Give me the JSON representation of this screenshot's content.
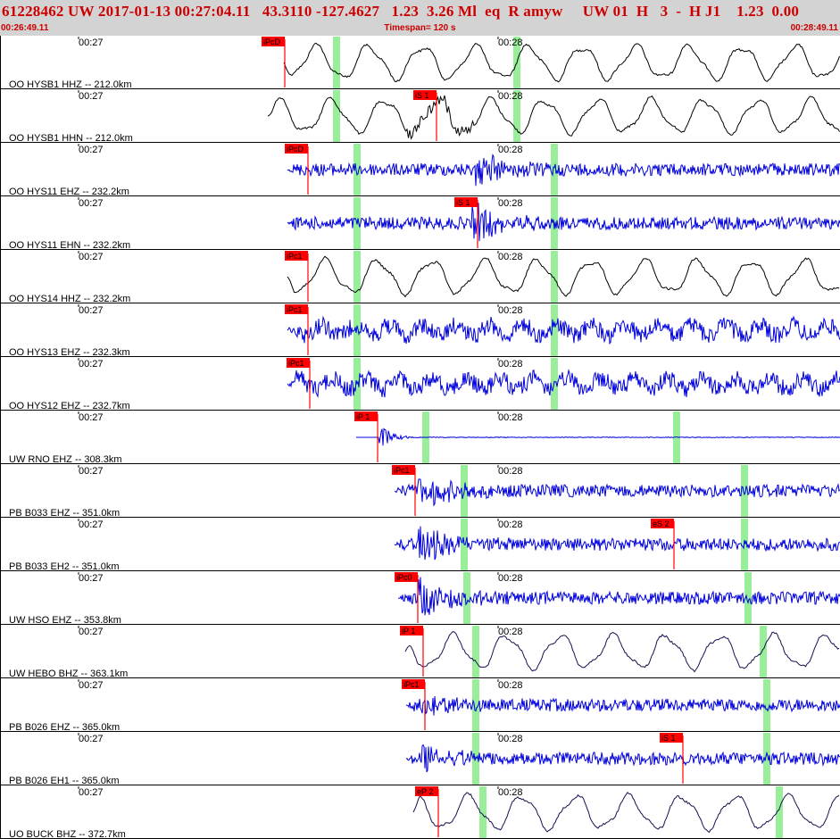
{
  "header": {
    "title": "61228462 UW 2017-01-13 00:27:04.11   43.3110 -127.4627   1.23  3.26 Ml  eq  R amyw     UW 01  H   3  -  H J1    1.23  0.00",
    "start_time": "00:26:49.11",
    "timespan": "Timespan= 120 s",
    "end_time": "00:28:49.11"
  },
  "colors": {
    "pick": "#ff0000",
    "marker": "#99ee99",
    "trace_blue": "#0000dd",
    "trace_black": "#000000",
    "trace_navy": "#1a1050",
    "header_bg": "#d3d3d3",
    "header_text": "#cc0000"
  },
  "chart_data": {
    "type": "seismogram",
    "time_ticks": [
      "00:27",
      "00:28"
    ],
    "traces": [
      {
        "label": "OO HYSB1 HHZ -- 212.0km",
        "color": "black",
        "kind": "lp",
        "onset": 318,
        "burst": null,
        "picks": [
          {
            "label": "iPcD",
            "x": 319
          }
        ],
        "green": [
          377,
          579
        ]
      },
      {
        "label": "OO HYSB1 HHN -- 212.0km",
        "color": "black",
        "kind": "lp",
        "onset": 300,
        "burst": 490,
        "picks": [
          {
            "label": "iS 1",
            "x": 489
          }
        ],
        "green": [
          377,
          579
        ]
      },
      {
        "label": "OO HYS11 EHZ -- 232.2km",
        "color": "blue",
        "kind": "hf",
        "onset": 322,
        "burst": 536,
        "picks": [
          {
            "label": "iPcD",
            "x": 345
          }
        ],
        "green": [
          400,
          621
        ]
      },
      {
        "label": "OO HYS11 EHN -- 232.2km",
        "color": "blue",
        "kind": "hf",
        "onset": 322,
        "burst": 533,
        "picks": [
          {
            "label": "iS 1",
            "x": 535
          }
        ],
        "green": [
          400,
          621
        ]
      },
      {
        "label": "OO HYS14 HHZ -- 232.2km",
        "color": "black",
        "kind": "lp",
        "onset": 322,
        "burst": null,
        "picks": [
          {
            "label": "iPc1",
            "x": 345
          }
        ],
        "green": [
          400,
          621
        ]
      },
      {
        "label": "OO HYS13 EHZ -- 232.3km",
        "color": "blue",
        "kind": "mid",
        "onset": 322,
        "burst": null,
        "picks": [
          {
            "label": "iPc1",
            "x": 345
          }
        ],
        "green": [
          400,
          621
        ]
      },
      {
        "label": "OO HYS12 EHZ -- 232.7km",
        "color": "blue",
        "kind": "mid",
        "onset": 322,
        "burst": null,
        "picks": [
          {
            "label": "iPc1",
            "x": 347
          }
        ],
        "green": [
          400,
          621
        ]
      },
      {
        "label": "UW RNO EHZ -- 308.3km",
        "color": "blue",
        "kind": "flat",
        "onset": 399,
        "burst": 427,
        "picks": [
          {
            "label": "iP 1",
            "x": 423
          }
        ],
        "green": [
          477,
          758
        ]
      },
      {
        "label": "PB B033 EHZ -- 351.0km",
        "color": "blue",
        "kind": "hf",
        "onset": 442,
        "burst": 472,
        "picks": [
          {
            "label": "iPc1",
            "x": 465
          }
        ],
        "green": [
          520,
          834
        ]
      },
      {
        "label": "PB B033 EH2 -- 351.0km",
        "color": "blue",
        "kind": "hf",
        "onset": 442,
        "burst": 472,
        "picks": [
          {
            "label": "eS 2",
            "x": 755
          }
        ],
        "green": [
          520,
          834
        ]
      },
      {
        "label": "UW HSO EHZ -- 353.8km",
        "color": "blue",
        "kind": "hf",
        "onset": 446,
        "burst": 472,
        "picks": [
          {
            "label": "iPc0",
            "x": 468
          }
        ],
        "green": [
          523,
          838
        ]
      },
      {
        "label": "UW HEBO BHZ -- 363.1km",
        "color": "navy",
        "kind": "lp",
        "onset": 454,
        "burst": null,
        "picks": [
          {
            "label": "iP 1",
            "x": 474
          }
        ],
        "green": [
          533,
          855
        ]
      },
      {
        "label": "PB B026 EHZ -- 365.0km",
        "color": "blue",
        "kind": "hf",
        "onset": 455,
        "burst": 477,
        "picks": [
          {
            "label": "iPc1",
            "x": 476
          }
        ],
        "green": [
          533,
          859
        ]
      },
      {
        "label": "PB B026 EH1 -- 365.0km",
        "color": "blue",
        "kind": "hf",
        "onset": 455,
        "burst": 477,
        "picks": [
          {
            "label": "iS 1",
            "x": 765
          }
        ],
        "green": [
          533,
          859
        ]
      },
      {
        "label": "UO BUCK BHZ -- 372.7km",
        "color": "navy",
        "kind": "lp",
        "onset": 463,
        "burst": null,
        "picks": [
          {
            "label": "eP 2",
            "x": 491
          }
        ],
        "green": [
          541,
          873
        ]
      }
    ]
  }
}
